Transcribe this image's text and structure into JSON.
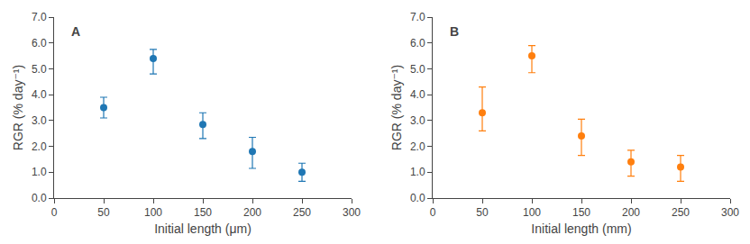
{
  "chart_data": [
    {
      "type": "scatter",
      "title": "A",
      "xlabel": "Initial length (μm)",
      "ylabel": "RGR (% day⁻¹)",
      "x": [
        50,
        100,
        150,
        200,
        250
      ],
      "values": [
        3.5,
        5.4,
        2.85,
        1.8,
        1.0
      ],
      "error_low": [
        0.4,
        0.6,
        0.55,
        0.65,
        0.35
      ],
      "error_high": [
        0.4,
        0.35,
        0.45,
        0.55,
        0.35
      ],
      "xlim": [
        0,
        300
      ],
      "xticks": [
        0,
        50,
        100,
        150,
        200,
        250,
        300
      ],
      "ylim": [
        0.0,
        7.0
      ],
      "yticks": [
        {
          "value": 0,
          "label": "0.0"
        },
        {
          "value": 1,
          "label": "1.0"
        },
        {
          "value": 2,
          "label": "2.0"
        },
        {
          "value": 3,
          "label": "3.0"
        },
        {
          "value": 4,
          "label": "4.0"
        },
        {
          "value": 5,
          "label": "5.0"
        },
        {
          "value": 6,
          "label": "6.0"
        },
        {
          "value": 7,
          "label": "7.0"
        }
      ],
      "marker": "circle",
      "line_style": "none",
      "grid": false
    },
    {
      "type": "scatter",
      "title": "B",
      "xlabel": "Initial length (mm)",
      "ylabel": "RGR (% day⁻¹)",
      "x": [
        50,
        100,
        150,
        200,
        250
      ],
      "values": [
        3.3,
        5.5,
        2.4,
        1.4,
        1.2
      ],
      "error_low": [
        0.7,
        0.65,
        0.75,
        0.55,
        0.55
      ],
      "error_high": [
        1.0,
        0.4,
        0.65,
        0.45,
        0.45
      ],
      "xlim": [
        0,
        300
      ],
      "xticks": [
        0,
        50,
        100,
        150,
        200,
        250,
        300
      ],
      "ylim": [
        0.0,
        7.0
      ],
      "yticks": [
        {
          "value": 0,
          "label": "0.0"
        },
        {
          "value": 1,
          "label": "1.0"
        },
        {
          "value": 2,
          "label": "2.0"
        },
        {
          "value": 3,
          "label": "3.0"
        },
        {
          "value": 4,
          "label": "4.0"
        },
        {
          "value": 5,
          "label": "5.0"
        },
        {
          "value": 6,
          "label": "6.0"
        },
        {
          "value": 7,
          "label": "7.0"
        }
      ],
      "marker": "circle",
      "line_style": "none",
      "grid": false
    }
  ]
}
